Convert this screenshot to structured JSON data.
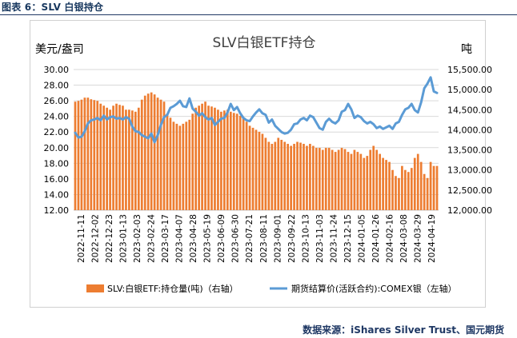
{
  "figure_label": "图表 6：SLV 白银持仓",
  "source_note": "数据来源：iShares Silver Trust、国元期货",
  "chart_data": {
    "type": "bar+line",
    "title": "SLV白银ETF持仓",
    "ylabel_left": "美元/盎司",
    "ylabel_right": "吨",
    "left_axis": {
      "min": 12,
      "max": 30,
      "step": 2,
      "ticks": [
        "12.00",
        "14.00",
        "16.00",
        "18.00",
        "20.00",
        "22.00",
        "24.00",
        "26.00",
        "28.00",
        "30.00"
      ]
    },
    "right_axis": {
      "min": 12000,
      "max": 15500,
      "step": 500,
      "ticks": [
        "12,000.00",
        "12,500.00",
        "13,000.00",
        "13,500.00",
        "14,000.00",
        "14,500.00",
        "15,000.00",
        "15,500.00"
      ]
    },
    "x_ticks": [
      "2022-11-11",
      "2022-12-02",
      "2022-12-23",
      "2023-01-13",
      "2023-02-03",
      "2023-02-24",
      "2023-03-17",
      "2023-04-07",
      "2023-04-28",
      "2023-05-19",
      "2023-06-09",
      "2023-06-30",
      "2023-07-21",
      "2023-08-11",
      "2023-09-01",
      "2023-09-22",
      "2023-10-13",
      "2023-11-03",
      "2023-11-24",
      "2023-12-15",
      "2024-01-05",
      "2024-01-26",
      "2024-02-16",
      "2024-03-08",
      "2024-03-29",
      "2024-04-19"
    ],
    "legend_position": "bottom",
    "bar_color": "#ed7d31",
    "line_color": "#5b9bd5",
    "series": [
      {
        "name": "SLV:白银ETF:持仓量(吨)（右轴）",
        "kind": "bar",
        "axis": "right",
        "values": [
          14700,
          14720,
          14750,
          14800,
          14800,
          14760,
          14740,
          14720,
          14650,
          14600,
          14550,
          14500,
          14600,
          14650,
          14620,
          14600,
          14500,
          14500,
          14480,
          14450,
          14550,
          14750,
          14850,
          14900,
          14930,
          14880,
          14800,
          14750,
          14700,
          14400,
          14300,
          14200,
          14150,
          14100,
          14150,
          14200,
          14250,
          14400,
          14550,
          14600,
          14650,
          14700,
          14600,
          14580,
          14550,
          14500,
          14450,
          14480,
          14500,
          14450,
          14420,
          14400,
          14350,
          14300,
          14200,
          14100,
          14050,
          14000,
          13950,
          13900,
          13800,
          13700,
          13650,
          13700,
          13800,
          13750,
          13700,
          13650,
          13600,
          13650,
          13700,
          13680,
          13650,
          13600,
          13650,
          13600,
          13550,
          13550,
          13500,
          13550,
          13550,
          13500,
          13450,
          13500,
          13550,
          13520,
          13450,
          13400,
          13500,
          13450,
          13400,
          13300,
          13350,
          13500,
          13600,
          13500,
          13400,
          13300,
          13250,
          13200,
          13000,
          12850,
          12800,
          13100,
          13000,
          12950,
          13050,
          13300,
          13400,
          13200,
          12900,
          12800,
          13200,
          13100,
          13100
        ]
      },
      {
        "name": "期货结算价(活跃合约):COMEX银（左轴）",
        "kind": "line",
        "axis": "left",
        "values": [
          21.9,
          21.3,
          21.4,
          22.1,
          23.1,
          23.5,
          23.6,
          23.8,
          23.5,
          24.1,
          23.6,
          23.9,
          24.0,
          23.7,
          23.8,
          23.6,
          23.9,
          23.7,
          22.7,
          22.1,
          22.0,
          21.6,
          21.4,
          21.2,
          21.8,
          20.7,
          21.6,
          22.9,
          23.9,
          24.2,
          25.1,
          25.3,
          25.6,
          26.0,
          25.3,
          25.2,
          26.3,
          25.0,
          24.6,
          24.1,
          24.4,
          23.9,
          23.6,
          23.8,
          22.9,
          23.3,
          23.7,
          23.8,
          24.5,
          25.6,
          24.8,
          25.2,
          24.4,
          23.8,
          23.5,
          23.4,
          24.0,
          24.5,
          24.9,
          24.4,
          24.2,
          23.2,
          23.6,
          22.8,
          22.4,
          22.0,
          21.8,
          21.9,
          22.3,
          23.0,
          23.1,
          23.6,
          23.8,
          23.5,
          24.1,
          23.9,
          23.2,
          22.5,
          22.3,
          23.3,
          23.7,
          23.3,
          23.1,
          23.5,
          24.6,
          24.8,
          25.6,
          24.9,
          23.8,
          24.1,
          23.9,
          23.4,
          23.1,
          23.3,
          23.0,
          22.5,
          22.7,
          22.4,
          22.6,
          22.8,
          22.4,
          23.1,
          23.3,
          24.2,
          24.9,
          25.1,
          25.6,
          24.8,
          24.5,
          25.8,
          27.6,
          28.2,
          29.0,
          27.2,
          27.0
        ]
      }
    ]
  }
}
